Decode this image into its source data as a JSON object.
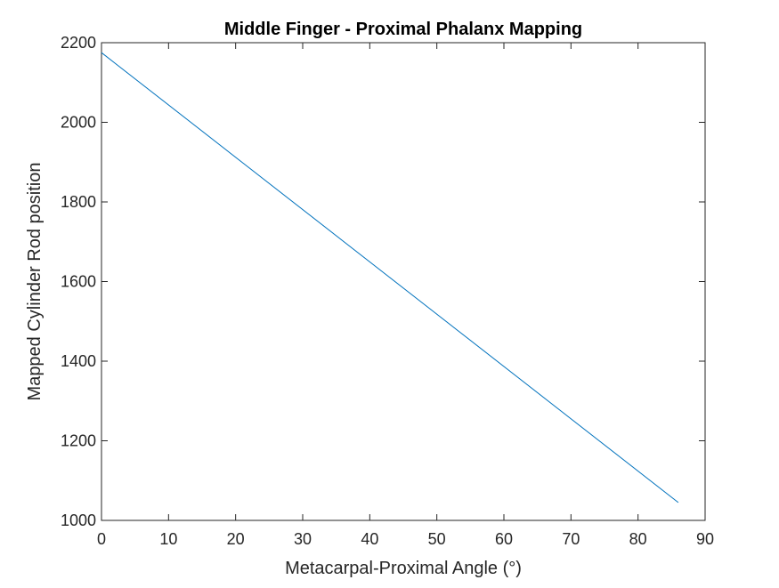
{
  "chart_data": {
    "type": "line",
    "title": "Middle Finger - Proximal Phalanx Mapping",
    "xlabel": "Metacarpal-Proximal Angle (°)",
    "ylabel": "Mapped Cylinder Rod position",
    "xlim": [
      0,
      90
    ],
    "ylim": [
      1000,
      2200
    ],
    "xticks": [
      0,
      10,
      20,
      30,
      40,
      50,
      60,
      70,
      80,
      90
    ],
    "yticks": [
      1000,
      1200,
      1400,
      1600,
      1800,
      2000,
      2200
    ],
    "xtick_labels": [
      "0",
      "10",
      "20",
      "30",
      "40",
      "50",
      "60",
      "70",
      "80",
      "90"
    ],
    "ytick_labels": [
      "1000",
      "1200",
      "1400",
      "1600",
      "1800",
      "2000",
      "2200"
    ],
    "grid": false,
    "box": true,
    "series": [
      {
        "color": "#0072BD",
        "x": [
          0,
          86
        ],
        "y": [
          2175,
          1045
        ]
      }
    ]
  }
}
